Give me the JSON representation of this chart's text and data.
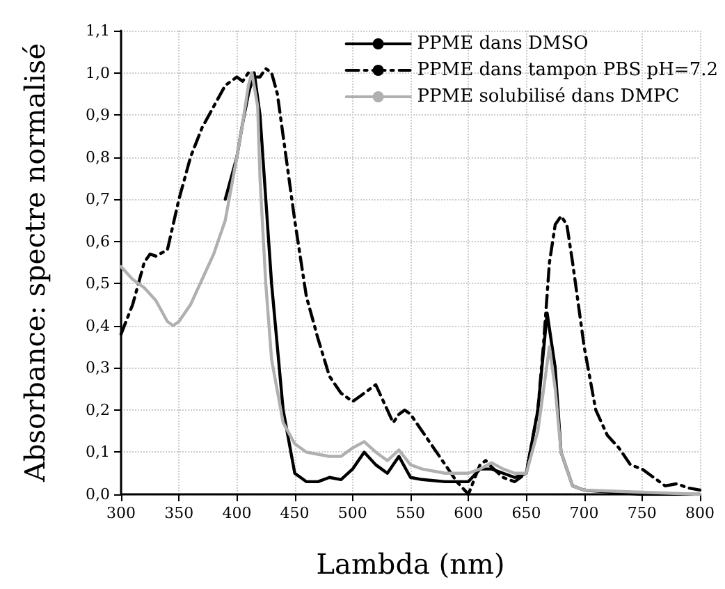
{
  "chart_data": {
    "type": "line",
    "xlabel": "Lambda (nm)",
    "ylabel": "Absorbance: spectre normalisé",
    "xlim": [
      300,
      800
    ],
    "xticks": [
      300,
      350,
      400,
      450,
      500,
      550,
      600,
      650,
      700,
      750,
      800
    ],
    "ylim": [
      0,
      1.1
    ],
    "yticks": [
      {
        "value": 0,
        "label": "0,0"
      },
      {
        "value": 0.1,
        "label": "0,1"
      },
      {
        "value": 0.2,
        "label": "0,2"
      },
      {
        "value": 0.3,
        "label": "0,3"
      },
      {
        "value": 0.4,
        "label": "0,4"
      },
      {
        "value": 0.5,
        "label": "0,5"
      },
      {
        "value": 0.6,
        "label": "0,6"
      },
      {
        "value": 0.7,
        "label": "0,7"
      },
      {
        "value": 0.8,
        "label": "0,8"
      },
      {
        "value": 0.9,
        "label": "0,9"
      },
      {
        "value": 1.0,
        "label": "1,0"
      },
      {
        "value": 1.1,
        "label": "1,1"
      }
    ],
    "grid": true,
    "legend": "top right",
    "marker": "none",
    "series": [
      {
        "name": "PPME dans DMSO",
        "color": "#000000",
        "line_style": "solid",
        "x": [
          390,
          400,
          405,
          410,
          415,
          420,
          425,
          430,
          440,
          450,
          460,
          470,
          480,
          490,
          500,
          510,
          520,
          530,
          540,
          550,
          560,
          580,
          600,
          610,
          620,
          630,
          640,
          650,
          660,
          668,
          675,
          680,
          690,
          700,
          750,
          800
        ],
        "values": [
          0.7,
          0.8,
          0.88,
          0.95,
          1.0,
          0.9,
          0.7,
          0.5,
          0.2,
          0.05,
          0.03,
          0.03,
          0.04,
          0.035,
          0.06,
          0.1,
          0.07,
          0.05,
          0.09,
          0.04,
          0.035,
          0.03,
          0.03,
          0.06,
          0.06,
          0.05,
          0.04,
          0.05,
          0.2,
          0.43,
          0.3,
          0.1,
          0.02,
          0.01,
          0.0,
          0.0
        ]
      },
      {
        "name": "PPME dans tampon PBS pH=7.2",
        "color": "#000000",
        "line_style": "dashed",
        "x": [
          300,
          310,
          320,
          325,
          330,
          340,
          350,
          360,
          370,
          380,
          390,
          400,
          405,
          410,
          415,
          420,
          425,
          430,
          435,
          440,
          450,
          460,
          470,
          480,
          490,
          500,
          510,
          520,
          530,
          535,
          540,
          545,
          550,
          560,
          570,
          580,
          590,
          600,
          610,
          615,
          620,
          630,
          640,
          650,
          660,
          665,
          670,
          675,
          680,
          685,
          690,
          700,
          710,
          720,
          730,
          740,
          750,
          760,
          770,
          780,
          790,
          800
        ],
        "values": [
          0.38,
          0.45,
          0.55,
          0.57,
          0.565,
          0.58,
          0.7,
          0.8,
          0.87,
          0.92,
          0.97,
          0.99,
          0.98,
          1.0,
          0.99,
          0.99,
          1.01,
          1.0,
          0.95,
          0.85,
          0.65,
          0.47,
          0.37,
          0.28,
          0.24,
          0.22,
          0.24,
          0.26,
          0.2,
          0.17,
          0.19,
          0.2,
          0.19,
          0.15,
          0.11,
          0.07,
          0.03,
          0.0,
          0.07,
          0.08,
          0.065,
          0.04,
          0.03,
          0.05,
          0.2,
          0.36,
          0.55,
          0.64,
          0.66,
          0.64,
          0.55,
          0.35,
          0.2,
          0.14,
          0.11,
          0.07,
          0.06,
          0.04,
          0.02,
          0.025,
          0.015,
          0.01
        ]
      },
      {
        "name": "PPME solubilisé dans DMPC",
        "color": "#b0b0b0",
        "line_style": "solid",
        "x": [
          300,
          310,
          320,
          330,
          340,
          345,
          350,
          360,
          370,
          380,
          390,
          400,
          405,
          410,
          413,
          418,
          420,
          425,
          430,
          440,
          450,
          460,
          470,
          480,
          490,
          500,
          510,
          520,
          530,
          540,
          550,
          560,
          580,
          600,
          610,
          620,
          630,
          640,
          650,
          660,
          670,
          675,
          680,
          690,
          700,
          750,
          800
        ],
        "values": [
          0.54,
          0.51,
          0.49,
          0.46,
          0.41,
          0.4,
          0.41,
          0.45,
          0.51,
          0.57,
          0.65,
          0.8,
          0.88,
          0.97,
          1.0,
          0.92,
          0.75,
          0.5,
          0.32,
          0.17,
          0.12,
          0.1,
          0.095,
          0.09,
          0.09,
          0.11,
          0.125,
          0.1,
          0.08,
          0.105,
          0.07,
          0.06,
          0.05,
          0.05,
          0.06,
          0.075,
          0.06,
          0.05,
          0.05,
          0.15,
          0.35,
          0.25,
          0.1,
          0.02,
          0.01,
          0.005,
          0.0
        ]
      }
    ]
  }
}
